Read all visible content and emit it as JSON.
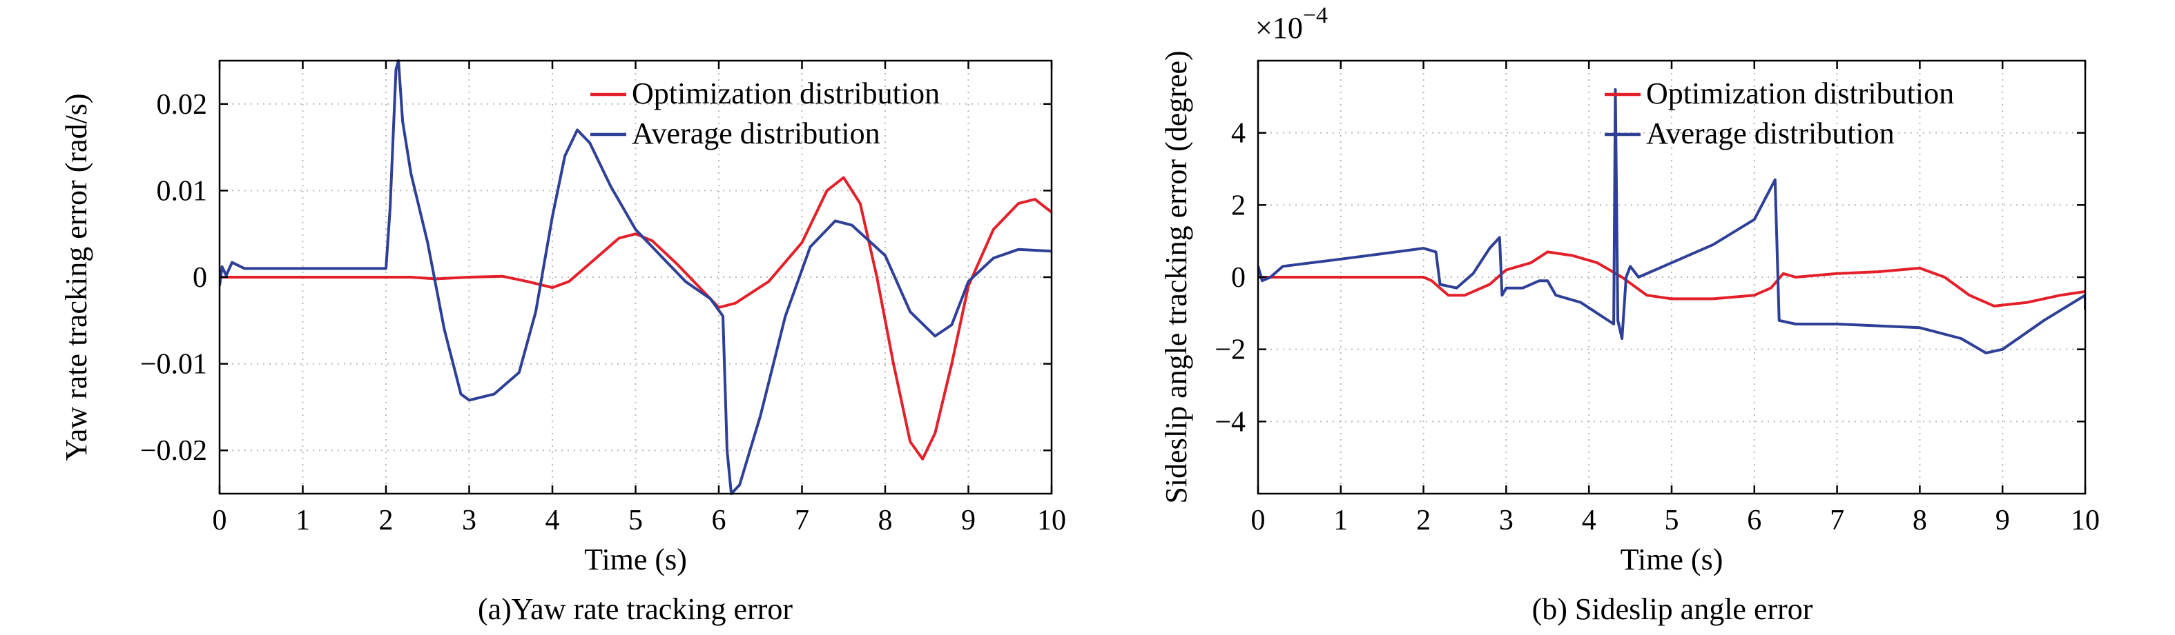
{
  "chart_data": [
    {
      "type": "line",
      "ylabel": "Yaw rate tracking error (rad/s)",
      "xlabel": "Time (s)",
      "caption": "(a)Yaw rate tracking error",
      "xlim": [
        0,
        10
      ],
      "ylim": [
        -0.025,
        0.025
      ],
      "xticks": [
        "0",
        "1",
        "2",
        "3",
        "4",
        "5",
        "6",
        "7",
        "8",
        "9",
        "10"
      ],
      "yticks": [
        {
          "value": 0.02,
          "label": "0.02"
        },
        {
          "value": 0.01,
          "label": "0.01"
        },
        {
          "value": 0,
          "label": "0"
        },
        {
          "value": -0.01,
          "label": "−0.01"
        },
        {
          "value": -0.02,
          "label": "−0.02"
        }
      ],
      "grid": true,
      "legend": "top-right",
      "series": [
        {
          "name": "Optimization distribution",
          "color": "#e3202a",
          "points": [
            [
              0,
              0
            ],
            [
              0.5,
              0
            ],
            [
              1,
              0
            ],
            [
              1.5,
              0
            ],
            [
              2,
              0
            ],
            [
              2.3,
              0
            ],
            [
              2.6,
              -0.0002
            ],
            [
              3,
              0
            ],
            [
              3.4,
              0.0001
            ],
            [
              3.7,
              -0.0005
            ],
            [
              4,
              -0.0012
            ],
            [
              4.2,
              -0.0005
            ],
            [
              4.5,
              0.002
            ],
            [
              4.8,
              0.0045
            ],
            [
              5,
              0.005
            ],
            [
              5.2,
              0.0042
            ],
            [
              5.5,
              0.0015
            ],
            [
              5.8,
              -0.0015
            ],
            [
              6,
              -0.0035
            ],
            [
              6.2,
              -0.003
            ],
            [
              6.6,
              -0.0005
            ],
            [
              7,
              0.004
            ],
            [
              7.3,
              0.01
            ],
            [
              7.5,
              0.0115
            ],
            [
              7.7,
              0.0085
            ],
            [
              7.9,
              0
            ],
            [
              8.1,
              -0.01
            ],
            [
              8.3,
              -0.019
            ],
            [
              8.45,
              -0.021
            ],
            [
              8.6,
              -0.018
            ],
            [
              8.8,
              -0.01
            ],
            [
              9,
              -0.001
            ],
            [
              9.3,
              0.0055
            ],
            [
              9.6,
              0.0085
            ],
            [
              9.8,
              0.009
            ],
            [
              10,
              0.0075
            ]
          ]
        },
        {
          "name": "Average distribution",
          "color": "#2e3f97",
          "points": [
            [
              0,
              -0.001
            ],
            [
              0.03,
              0.0012
            ],
            [
              0.08,
              0.0002
            ],
            [
              0.15,
              0.0017
            ],
            [
              0.3,
              0.001
            ],
            [
              1,
              0.001
            ],
            [
              2,
              0.001
            ],
            [
              2.05,
              0.008
            ],
            [
              2.12,
              0.024
            ],
            [
              2.15,
              0.025
            ],
            [
              2.2,
              0.018
            ],
            [
              2.3,
              0.012
            ],
            [
              2.5,
              0.004
            ],
            [
              2.7,
              -0.006
            ],
            [
              2.9,
              -0.0135
            ],
            [
              3,
              -0.0142
            ],
            [
              3.3,
              -0.0135
            ],
            [
              3.6,
              -0.011
            ],
            [
              3.8,
              -0.004
            ],
            [
              4,
              0.007
            ],
            [
              4.15,
              0.014
            ],
            [
              4.3,
              0.017
            ],
            [
              4.45,
              0.0155
            ],
            [
              4.7,
              0.0105
            ],
            [
              5,
              0.0055
            ],
            [
              5.3,
              0.0025
            ],
            [
              5.6,
              -0.0005
            ],
            [
              5.9,
              -0.0025
            ],
            [
              6.05,
              -0.0045
            ],
            [
              6.1,
              -0.02
            ],
            [
              6.15,
              -0.025
            ],
            [
              6.25,
              -0.024
            ],
            [
              6.5,
              -0.016
            ],
            [
              6.8,
              -0.0045
            ],
            [
              7.1,
              0.0035
            ],
            [
              7.4,
              0.0065
            ],
            [
              7.6,
              0.006
            ],
            [
              8,
              0.0025
            ],
            [
              8.3,
              -0.004
            ],
            [
              8.6,
              -0.0068
            ],
            [
              8.8,
              -0.0055
            ],
            [
              9,
              -0.0005
            ],
            [
              9.3,
              0.0022
            ],
            [
              9.6,
              0.0032
            ],
            [
              10,
              0.003
            ]
          ]
        }
      ]
    },
    {
      "type": "line",
      "ylabel": "Sideslip angle tracking error (degree)",
      "xlabel": "Time (s)",
      "caption": "(b) Sideslip angle error",
      "scale_label": "×10",
      "scale_exponent": "−4",
      "xlim": [
        0,
        10
      ],
      "ylim": [
        -6,
        6
      ],
      "xticks": [
        "0",
        "1",
        "2",
        "3",
        "4",
        "5",
        "6",
        "7",
        "8",
        "9",
        "10"
      ],
      "yticks": [
        {
          "value": 4,
          "label": "4"
        },
        {
          "value": 2,
          "label": "2"
        },
        {
          "value": 0,
          "label": "0"
        },
        {
          "value": -2,
          "label": "−2"
        },
        {
          "value": -4,
          "label": "−4"
        }
      ],
      "grid": true,
      "legend": "top-right",
      "series": [
        {
          "name": "Optimization distribution",
          "color": "#e3202a",
          "points": [
            [
              0,
              0
            ],
            [
              0.5,
              0
            ],
            [
              1,
              0
            ],
            [
              1.5,
              0
            ],
            [
              2,
              0
            ],
            [
              2.1,
              -0.1
            ],
            [
              2.3,
              -0.5
            ],
            [
              2.5,
              -0.5
            ],
            [
              2.8,
              -0.2
            ],
            [
              3,
              0.2
            ],
            [
              3.3,
              0.4
            ],
            [
              3.5,
              0.7
            ],
            [
              3.8,
              0.6
            ],
            [
              4.1,
              0.4
            ],
            [
              4.4,
              0
            ],
            [
              4.7,
              -0.5
            ],
            [
              5,
              -0.6
            ],
            [
              5.5,
              -0.6
            ],
            [
              6,
              -0.5
            ],
            [
              6.2,
              -0.3
            ],
            [
              6.35,
              0.1
            ],
            [
              6.5,
              0
            ],
            [
              7,
              0.1
            ],
            [
              7.5,
              0.15
            ],
            [
              8,
              0.25
            ],
            [
              8.3,
              0
            ],
            [
              8.6,
              -0.5
            ],
            [
              8.9,
              -0.8
            ],
            [
              9.3,
              -0.7
            ],
            [
              9.7,
              -0.5
            ],
            [
              10,
              -0.4
            ]
          ]
        },
        {
          "name": "Average distribution",
          "color": "#2e3f97",
          "points": [
            [
              0,
              0.3
            ],
            [
              0.05,
              -0.1
            ],
            [
              0.15,
              0
            ],
            [
              0.3,
              0.3
            ],
            [
              1,
              0.5
            ],
            [
              1.5,
              0.65
            ],
            [
              2,
              0.8
            ],
            [
              2.15,
              0.7
            ],
            [
              2.2,
              -0.2
            ],
            [
              2.4,
              -0.3
            ],
            [
              2.6,
              0.1
            ],
            [
              2.8,
              0.8
            ],
            [
              2.92,
              1.1
            ],
            [
              2.95,
              -0.5
            ],
            [
              3,
              -0.3
            ],
            [
              3.2,
              -0.3
            ],
            [
              3.4,
              -0.1
            ],
            [
              3.5,
              -0.1
            ],
            [
              3.6,
              -0.5
            ],
            [
              3.9,
              -0.7
            ],
            [
              4.1,
              -1
            ],
            [
              4.3,
              -1.3
            ],
            [
              4.32,
              5.2
            ],
            [
              4.35,
              -1.2
            ],
            [
              4.4,
              -1.7
            ],
            [
              4.45,
              0
            ],
            [
              4.5,
              0.3
            ],
            [
              4.6,
              0
            ],
            [
              5,
              0.4
            ],
            [
              5.5,
              0.9
            ],
            [
              6,
              1.6
            ],
            [
              6.25,
              2.7
            ],
            [
              6.3,
              -1.2
            ],
            [
              6.5,
              -1.3
            ],
            [
              7,
              -1.3
            ],
            [
              7.5,
              -1.35
            ],
            [
              8,
              -1.4
            ],
            [
              8.5,
              -1.7
            ],
            [
              8.8,
              -2.1
            ],
            [
              9.0,
              -2.0
            ],
            [
              9.5,
              -1.2
            ],
            [
              10,
              -0.5
            ],
            [
              10,
              -0.9
            ]
          ]
        }
      ]
    }
  ]
}
